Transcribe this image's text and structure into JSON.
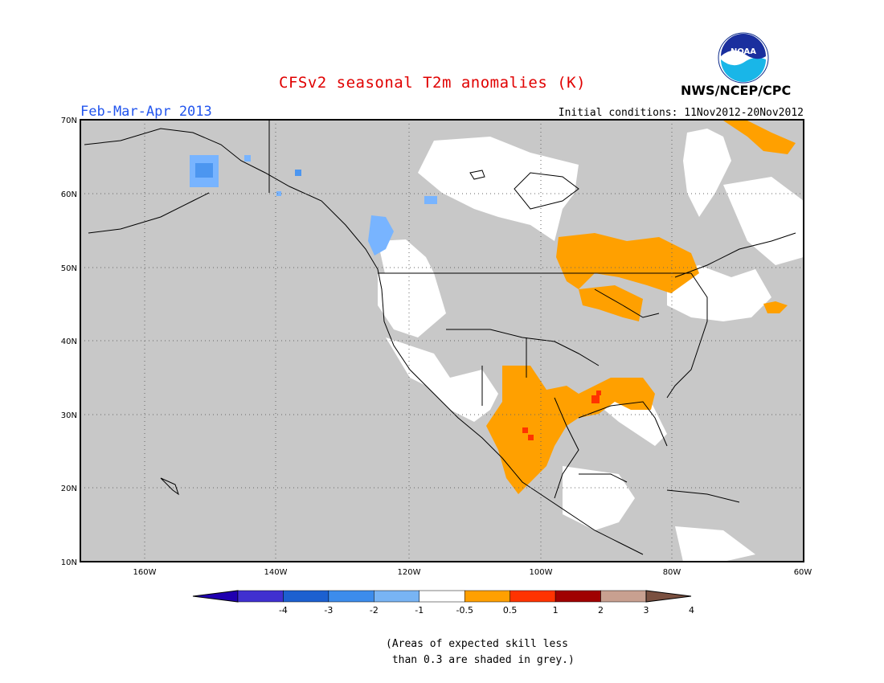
{
  "title": "CFSv2 seasonal T2m anomalies (K)",
  "period": "Feb-Mar-Apr 2013",
  "initial_conditions": "Initial conditions: 11Nov2012-20Nov2012",
  "agency": "NWS/NCEP/CPC",
  "logo": {
    "text": "NOAA",
    "icon": "noaa-logo-icon"
  },
  "note_line1": "(Areas of expected skill less",
  "note_line2": " than 0.3 are shaded in grey.)",
  "colors": {
    "grey_low_skill": "#c8c8c8",
    "neutral": "#ffffff",
    "warm_0_5_1": "#ffa000",
    "warm_1_2": "#ff3300",
    "warm_2_3": "#a00000",
    "cool_0_5_1": "#78b4ff",
    "cool_1_2": "#4c96f0"
  },
  "map": {
    "lon_range": [
      -172,
      -60
    ],
    "lat_range": [
      10,
      70
    ],
    "lat_ticks": [
      "70N",
      "60N",
      "50N",
      "40N",
      "30N",
      "20N",
      "10N"
    ],
    "lon_ticks": [
      "160W",
      "140W",
      "120W",
      "100W",
      "80W",
      "60W"
    ]
  },
  "colorbar": {
    "labels": [
      "-4",
      "-3",
      "-2",
      "-1",
      "-0.5",
      "0.5",
      "1",
      "2",
      "3",
      "4"
    ],
    "colors": [
      "#2000b0",
      "#4030d0",
      "#1c60d0",
      "#3c8cec",
      "#78b4f4",
      "#ffffff",
      "#ffa000",
      "#ff3300",
      "#a00000",
      "#c8a090",
      "#7a5040"
    ]
  }
}
